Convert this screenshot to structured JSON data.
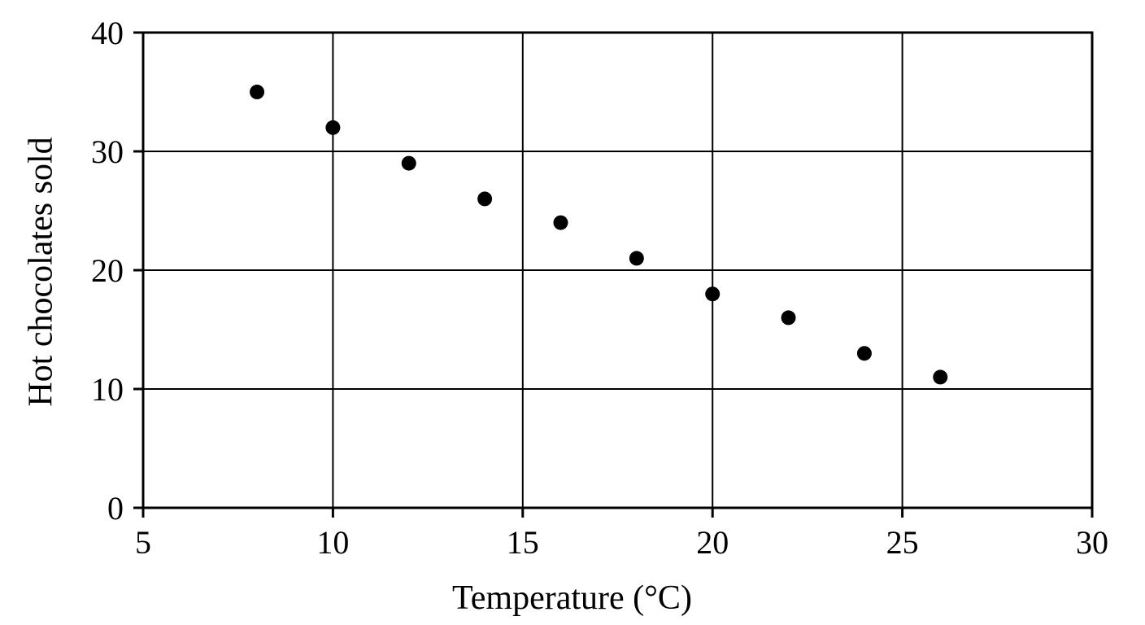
{
  "chart_data": {
    "type": "scatter",
    "title": "",
    "xlabel": "Temperature (°C)",
    "ylabel": "Hot chocolates sold",
    "xlim": [
      5,
      30
    ],
    "ylim": [
      0,
      40
    ],
    "x_ticks": [
      5,
      10,
      15,
      20,
      25,
      30
    ],
    "y_ticks": [
      0,
      10,
      20,
      30,
      40
    ],
    "grid": true,
    "marker_color": "#000000",
    "series": [
      {
        "x": [
          8,
          10,
          12,
          14,
          16,
          18,
          20,
          22,
          24,
          26
        ],
        "y": [
          35,
          32,
          29,
          26,
          24,
          21,
          18,
          16,
          13,
          11
        ]
      }
    ]
  }
}
